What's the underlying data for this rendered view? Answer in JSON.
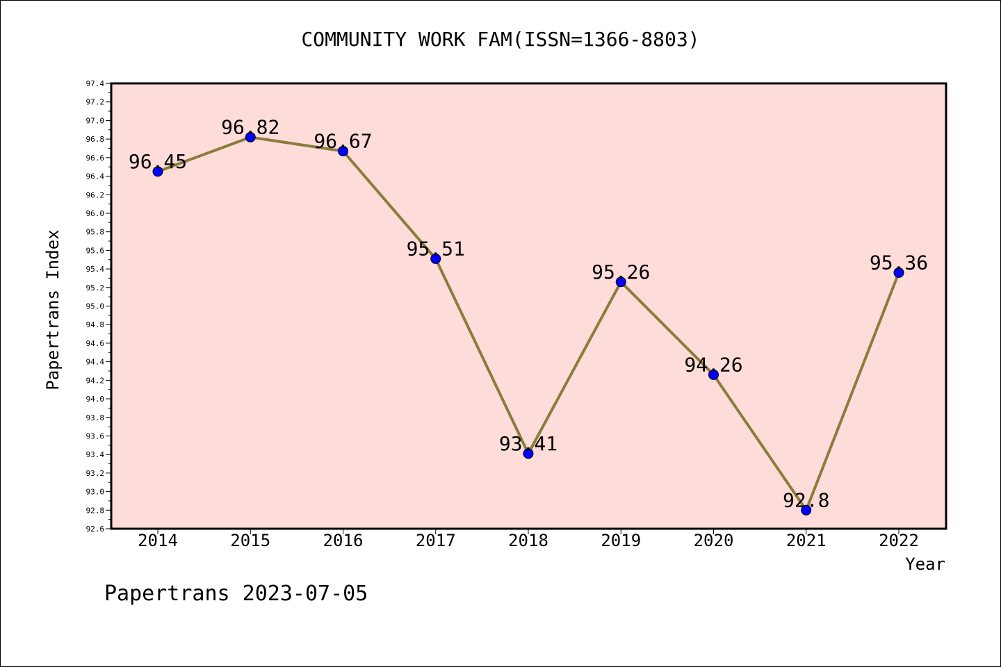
{
  "chart_data": {
    "type": "line",
    "title": "COMMUNITY WORK FAM(ISSN=1366-8803)",
    "xlabel": "Year",
    "ylabel": "Papertrans Index",
    "categories": [
      "2014",
      "2015",
      "2016",
      "2017",
      "2018",
      "2019",
      "2020",
      "2021",
      "2022"
    ],
    "series": [
      {
        "values": [
          96.45,
          96.82,
          96.67,
          95.51,
          93.41,
          95.26,
          94.26,
          92.8,
          95.36
        ]
      }
    ],
    "data_labels": [
      "96.45",
      "96.82",
      "96.67",
      "95.51",
      "93.41",
      "95.26",
      "94.26",
      "92.8",
      "95.36"
    ],
    "ylim": [
      92.6,
      97.4
    ],
    "y_ticks": [
      "92.6",
      "92.8",
      "93.0",
      "93.2",
      "93.4",
      "93.6",
      "93.8",
      "94.0",
      "94.2",
      "94.4",
      "94.6",
      "94.8",
      "95.0",
      "95.2",
      "95.4",
      "95.6",
      "95.8",
      "96.0",
      "96.2",
      "96.4",
      "96.6",
      "96.8",
      "97.0",
      "97.2",
      "97.4"
    ],
    "grid": false,
    "colors": {
      "plot_background": "#fddcd9",
      "line": "#8b7d3a",
      "marker": "#0000ff",
      "axis": "#000000"
    }
  },
  "footer": {
    "watermark": "Papertrans 2023-07-05"
  }
}
